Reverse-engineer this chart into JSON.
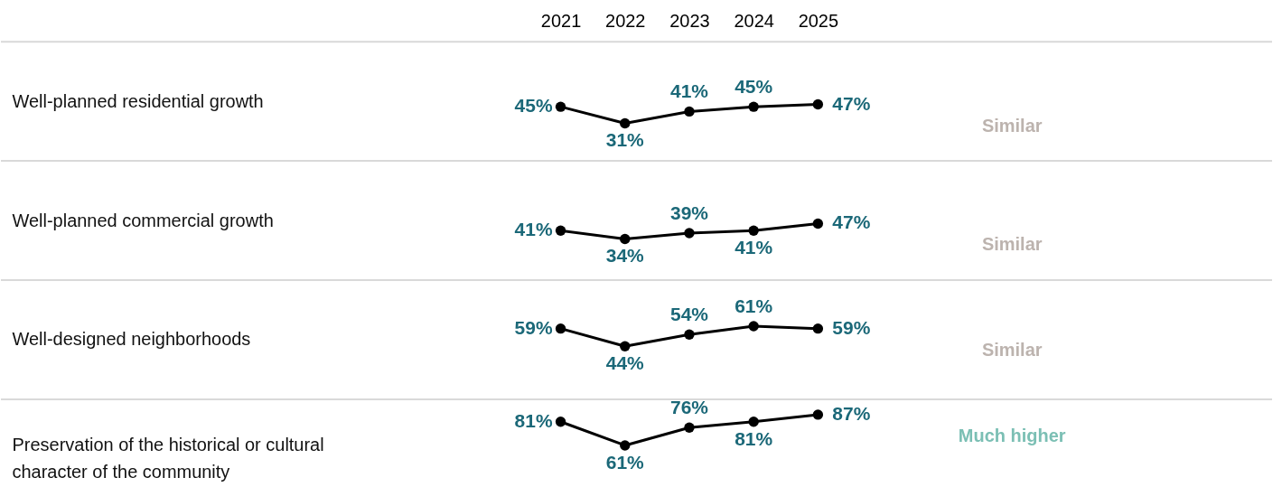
{
  "chart_data": [
    {
      "type": "line",
      "ylabel": "Well-planned residential growth",
      "categories": [
        "2021",
        "2022",
        "2023",
        "2024",
        "2025"
      ],
      "series": [
        {
          "color": "#000000",
          "values": [
            45,
            31,
            41,
            45,
            47
          ],
          "value_labels": [
            "45%",
            "31%",
            "41%",
            "45%",
            "47%"
          ]
        }
      ],
      "ylim": [
        0,
        100
      ],
      "marker": "circle",
      "line_style": "solid",
      "annotations": [
        "Similar"
      ],
      "tick_labels": "x"
    },
    {
      "type": "line",
      "ylabel": "Well-planned commercial growth",
      "categories": [
        "2021",
        "2022",
        "2023",
        "2024",
        "2025"
      ],
      "series": [
        {
          "color": "#000000",
          "values": [
            41,
            34,
            39,
            41,
            47
          ],
          "value_labels": [
            "41%",
            "34%",
            "39%",
            "41%",
            "47%"
          ]
        }
      ],
      "ylim": [
        0,
        100
      ],
      "marker": "circle",
      "line_style": "solid",
      "annotations": [
        "Similar"
      ],
      "tick_labels": false
    },
    {
      "type": "line",
      "ylabel": "Well-designed neighborhoods",
      "categories": [
        "2021",
        "2022",
        "2023",
        "2024",
        "2025"
      ],
      "series": [
        {
          "color": "#000000",
          "values": [
            59,
            44,
            54,
            61,
            59
          ],
          "value_labels": [
            "59%",
            "44%",
            "54%",
            "61%",
            "59%"
          ]
        }
      ],
      "ylim": [
        0,
        100
      ],
      "marker": "circle",
      "line_style": "solid",
      "annotations": [
        "Similar"
      ],
      "tick_labels": false
    },
    {
      "type": "line",
      "ylabel": "Preservation of the historical or cultural character of the community",
      "categories": [
        "2021",
        "2022",
        "2023",
        "2024",
        "2025"
      ],
      "series": [
        {
          "color": "#000000",
          "values": [
            81,
            61,
            76,
            81,
            87
          ],
          "value_labels": [
            "81%",
            "61%",
            "76%",
            "81%",
            "87%"
          ]
        }
      ],
      "ylim": [
        0,
        100
      ],
      "marker": "circle",
      "line_style": "solid",
      "annotations": [
        "Much higher"
      ],
      "tick_labels": false
    }
  ]
}
